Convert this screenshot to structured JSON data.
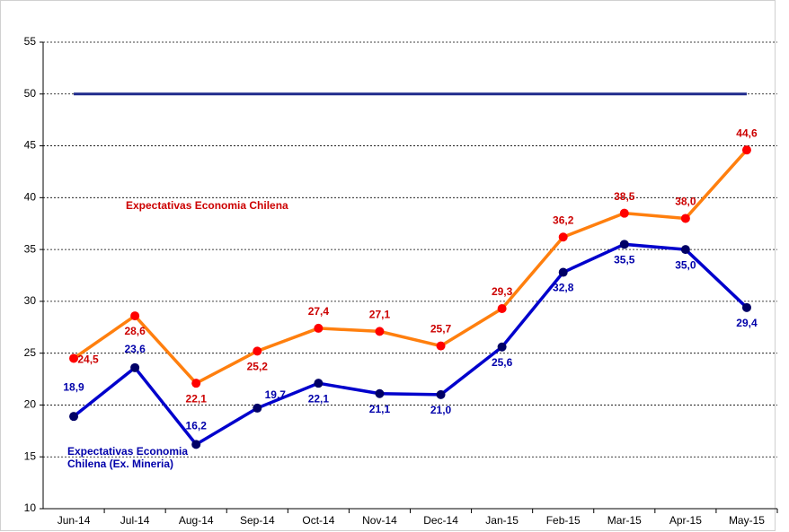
{
  "chart_data": {
    "type": "line",
    "categories": [
      "Jun-14",
      "Jul-14",
      "Aug-14",
      "Sep-14",
      "Oct-14",
      "Nov-14",
      "Dec-14",
      "Jan-15",
      "Feb-15",
      "Mar-15",
      "Apr-15",
      "May-15"
    ],
    "series": [
      {
        "name": "Expectativas Economia Chilena",
        "color": "#ff7f0e",
        "marker_color": "#ff0000",
        "label_color": "#cc0000",
        "values": [
          24.5,
          28.6,
          22.1,
          25.2,
          27.4,
          27.1,
          25.7,
          29.3,
          36.2,
          38.5,
          38.0,
          44.6
        ],
        "value_labels": [
          "24,5",
          "28,6",
          "22,1",
          "25,2",
          "27,4",
          "27,1",
          "25,7",
          "29,3",
          "36,2",
          "38,5",
          "38,0",
          "44,6"
        ]
      },
      {
        "name": "Expectativas Economia Chilena (Ex. Mineria)",
        "color": "#0000cc",
        "marker_color": "#000066",
        "label_color": "#0000aa",
        "values": [
          18.9,
          23.6,
          16.2,
          19.7,
          22.1,
          21.1,
          21.0,
          25.6,
          32.8,
          35.5,
          35.0,
          29.4
        ],
        "value_labels": [
          "18,9",
          "23,6",
          "16,2",
          "19,7",
          "22,1",
          "21,1",
          "21,0",
          "25,6",
          "32,8",
          "35,5",
          "35,0",
          "29,4"
        ]
      }
    ],
    "reference_line": {
      "value": 50,
      "color": "#1f2a8c"
    },
    "ylim": [
      10,
      55
    ],
    "yticks": [
      10,
      15,
      20,
      25,
      30,
      35,
      40,
      45,
      50,
      55
    ],
    "grid": true
  }
}
